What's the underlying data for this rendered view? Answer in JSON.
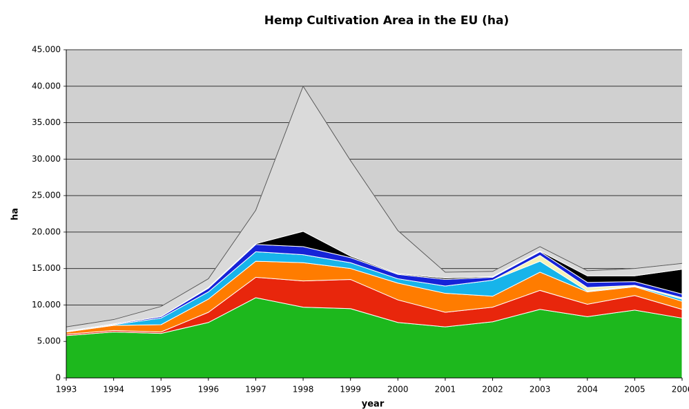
{
  "chart_data": {
    "type": "stacked_area",
    "title": "Hemp Cultivation Area in the EU (ha)",
    "x_label": "year",
    "y_label": "ha",
    "categories": [
      "1993",
      "1994",
      "1995",
      "1996",
      "1997",
      "1998",
      "1999",
      "2000",
      "2001",
      "2002",
      "2003",
      "2004",
      "2005",
      "2006"
    ],
    "series": [
      {
        "color": "#1db81d",
        "values": [
          5800,
          6300,
          6100,
          7600,
          11000,
          9700,
          9500,
          7600,
          7000,
          7700,
          9400,
          8400,
          9300,
          8200
        ]
      },
      {
        "color": "#e8260c",
        "values": [
          200,
          200,
          200,
          1400,
          2800,
          3600,
          4000,
          3100,
          2000,
          2000,
          2600,
          1700,
          2000,
          1200
        ]
      },
      {
        "color": "#ff7c00",
        "values": [
          300,
          700,
          1000,
          1800,
          2200,
          2500,
          1500,
          2300,
          2600,
          1500,
          2500,
          1700,
          1200,
          1100
        ]
      },
      {
        "color": "#17b4ea",
        "values": [
          0,
          100,
          900,
          1000,
          1300,
          1100,
          800,
          600,
          1000,
          2200,
          1500,
          100,
          100,
          300
        ]
      },
      {
        "color": "#f6f2b8",
        "values": [
          0,
          0,
          0,
          0,
          0,
          0,
          0,
          0,
          0,
          0,
          800,
          500,
          100,
          200
        ]
      },
      {
        "color": "#1623d8",
        "values": [
          100,
          100,
          200,
          500,
          1000,
          1100,
          700,
          600,
          900,
          400,
          500,
          700,
          500,
          500
        ]
      },
      {
        "color": "#000000",
        "values": [
          0,
          0,
          0,
          100,
          100,
          2100,
          200,
          100,
          200,
          100,
          100,
          900,
          800,
          3400
        ]
      },
      {
        "color": "#dadada",
        "values": [
          600,
          600,
          1400,
          1200,
          4600,
          19900,
          13100,
          5900,
          800,
          700,
          600,
          700,
          1000,
          800
        ]
      }
    ],
    "ylim": [
      0,
      45000
    ],
    "yticks": [
      0,
      {
        "value": 5000,
        "label": "5.000"
      },
      {
        "value": 10000,
        "label": "10.000"
      },
      {
        "value": 15000,
        "label": "15.000"
      },
      {
        "value": 20000,
        "label": "20.000"
      },
      {
        "value": 25000,
        "label": "25.000"
      },
      {
        "value": 30000,
        "label": "30.000"
      },
      {
        "value": 35000,
        "label": "35.000"
      },
      {
        "value": 40000,
        "label": "40.000"
      },
      {
        "value": 45000,
        "label": "45.000"
      }
    ],
    "grid": true
  }
}
